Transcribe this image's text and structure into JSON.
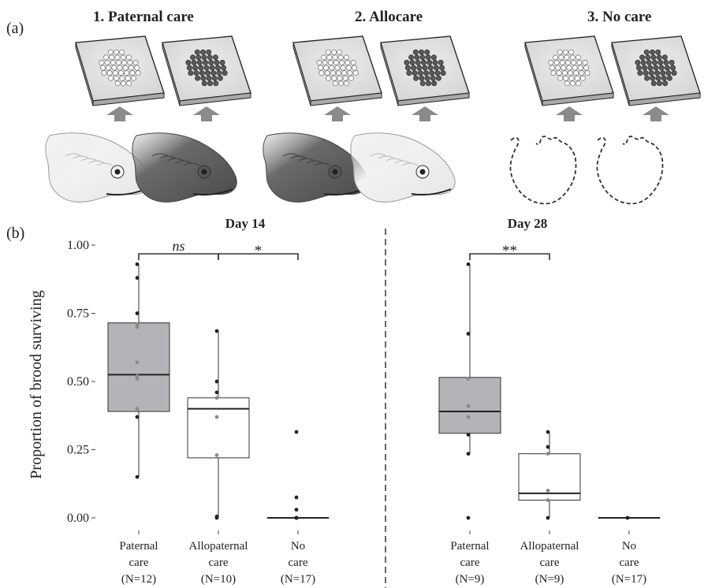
{
  "panel_a": {
    "label": "(a)",
    "treatments": [
      {
        "title": "1. Paternal care",
        "fish": [
          "own",
          "own-dark"
        ]
      },
      {
        "title": "2. Allocare",
        "fish": [
          "foreign-dark",
          "foreign"
        ]
      },
      {
        "title": "3. No care",
        "fish": [
          "none",
          "none"
        ]
      }
    ],
    "icons": [
      "egg-plate-icon",
      "up-arrow-icon",
      "fish-head-icon",
      "empty-outline-icon"
    ]
  },
  "panel_b": {
    "label": "(b)",
    "ylabel": "Proportion of brood surviving"
  },
  "chart_data": {
    "type": "box",
    "ylabel": "Proportion of brood surviving",
    "ylim": [
      0,
      1
    ],
    "yticks": [
      0,
      0.25,
      0.5,
      0.75,
      1.0
    ],
    "ytick_labels": [
      "0.00",
      "0.25",
      "0.50",
      "0.75",
      "1.00"
    ],
    "colors": {
      "paternal": "#b3b3b8",
      "allo": "#ffffff",
      "none": "#ffffff",
      "line": "#333333"
    },
    "facets": [
      {
        "title": "Day 14",
        "groups": [
          {
            "label": [
              "Paternal",
              "care",
              "(N=12)"
            ],
            "fill": "paternal",
            "q1": 0.39,
            "median": 0.525,
            "q3": 0.715,
            "whisker_low": 0.15,
            "whisker_high": 0.93,
            "points": [
              0.15,
              0.37,
              0.4,
              0.51,
              0.52,
              0.57,
              0.7,
              0.71,
              0.75,
              0.88,
              0.93
            ]
          },
          {
            "label": [
              "Allopaternal",
              "care",
              "(N=10)"
            ],
            "fill": "allo",
            "q1": 0.22,
            "median": 0.4,
            "q3": 0.44,
            "whisker_low": 0.0,
            "whisker_high": 0.685,
            "points": [
              0.0,
              0.005,
              0.23,
              0.37,
              0.44,
              0.46,
              0.5,
              0.685
            ]
          },
          {
            "label": [
              "No",
              "care",
              "(N=17)"
            ],
            "fill": "none",
            "q1": 0.0,
            "median": 0.0,
            "q3": 0.0,
            "whisker_low": 0.0,
            "whisker_high": 0.0,
            "points": [
              0.0,
              0.0,
              0.0,
              0.03,
              0.075,
              0.315
            ]
          }
        ],
        "comparisons": [
          {
            "from": 0,
            "to": 1,
            "label": "ns"
          },
          {
            "from": 1,
            "to": 2,
            "label": "*"
          }
        ]
      },
      {
        "title": "Day 28",
        "groups": [
          {
            "label": [
              "Paternal",
              "care",
              "(N=9)"
            ],
            "fill": "paternal",
            "q1": 0.31,
            "median": 0.39,
            "q3": 0.515,
            "whisker_low": 0.235,
            "whisker_high": 0.93,
            "points": [
              0.0,
              0.235,
              0.305,
              0.37,
              0.41,
              0.51,
              0.675,
              0.93
            ]
          },
          {
            "label": [
              "Allopaternal",
              "care",
              "(N=9)"
            ],
            "fill": "allo",
            "q1": 0.065,
            "median": 0.09,
            "q3": 0.235,
            "whisker_low": 0.0,
            "whisker_high": 0.315,
            "points": [
              0.0,
              0.065,
              0.1,
              0.235,
              0.26,
              0.315
            ]
          },
          {
            "label": [
              "No",
              "care",
              "(N=17)"
            ],
            "fill": "none",
            "q1": 0.0,
            "median": 0.0,
            "q3": 0.0,
            "whisker_low": 0.0,
            "whisker_high": 0.0,
            "points": [
              0.0
            ]
          }
        ],
        "comparisons": [
          {
            "from": 0,
            "to": 1,
            "label": "**"
          }
        ]
      }
    ]
  }
}
